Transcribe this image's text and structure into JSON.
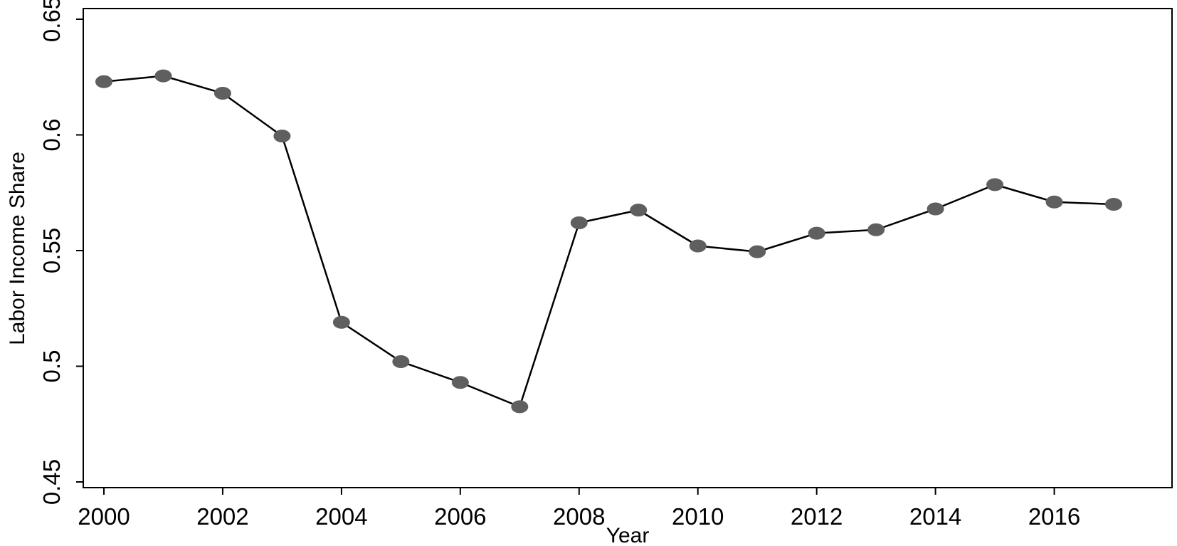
{
  "chart_data": {
    "type": "line",
    "title": "",
    "xlabel": "Year",
    "ylabel": "Labor Income Share",
    "xlim": [
      2000,
      2017
    ],
    "ylim": [
      0.45,
      0.65
    ],
    "grid": false,
    "legend": "none",
    "x_ticks": [
      2000,
      2002,
      2004,
      2006,
      2008,
      2010,
      2012,
      2014,
      2016
    ],
    "x_tick_labels": [
      "2000",
      "2002",
      "2004",
      "2006",
      "2008",
      "2010",
      "2012",
      "2014",
      "2016"
    ],
    "y_ticks": [
      0.45,
      0.5,
      0.55,
      0.6,
      0.65
    ],
    "y_tick_labels": [
      "0.45",
      "0.5",
      "0.55",
      "0.6",
      "0.65"
    ],
    "series": [
      {
        "x": [
          2000,
          2001,
          2002,
          2003,
          2004,
          2005,
          2006,
          2007,
          2008,
          2009,
          2010,
          2011,
          2012,
          2013,
          2014,
          2015,
          2016,
          2017
        ],
        "values": [
          0.623,
          0.6255,
          0.618,
          0.5995,
          0.519,
          0.502,
          0.493,
          0.4825,
          0.562,
          0.5675,
          0.552,
          0.5495,
          0.5575,
          0.559,
          0.568,
          0.5785,
          0.571,
          0.57
        ],
        "line_color": "#000000",
        "marker_color": "#5f5f5f"
      }
    ]
  }
}
